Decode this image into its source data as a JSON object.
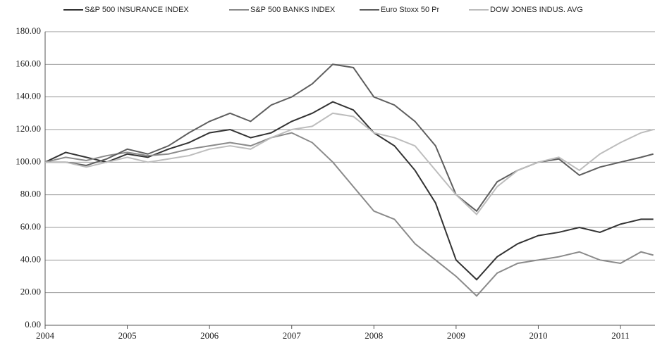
{
  "chart_data": {
    "type": "line",
    "x": [
      2004,
      2004.25,
      2004.5,
      2004.75,
      2005,
      2005.25,
      2005.5,
      2005.75,
      2006,
      2006.25,
      2006.5,
      2006.75,
      2007,
      2007.25,
      2007.5,
      2007.75,
      2008,
      2008.25,
      2008.5,
      2008.75,
      2009,
      2009.25,
      2009.5,
      2009.75,
      2010,
      2010.25,
      2010.5,
      2010.75,
      2011,
      2011.25,
      2011.4
    ],
    "series": [
      {
        "name": "S&P 500 INSURANCE INDEX",
        "color": "#333333",
        "values": [
          100,
          106,
          103,
          100,
          105,
          103,
          108,
          112,
          118,
          120,
          115,
          118,
          125,
          130,
          137,
          132,
          118,
          110,
          95,
          75,
          40,
          28,
          42,
          50,
          55,
          57,
          60,
          57,
          62,
          65,
          65
        ]
      },
      {
        "name": "S&P 500 BANKS INDEX",
        "color": "#8a8a8a",
        "values": [
          100,
          103,
          101,
          104,
          106,
          104,
          105,
          108,
          110,
          112,
          110,
          115,
          118,
          112,
          100,
          85,
          70,
          65,
          50,
          40,
          30,
          18,
          32,
          38,
          40,
          42,
          45,
          40,
          38,
          45,
          43
        ]
      },
      {
        "name": "Euro Stoxx 50 Pr",
        "color": "#5e5e5e",
        "values": [
          100,
          100,
          98,
          102,
          108,
          105,
          110,
          118,
          125,
          130,
          125,
          135,
          140,
          148,
          160,
          158,
          140,
          135,
          125,
          110,
          80,
          70,
          88,
          95,
          100,
          102,
          92,
          97,
          100,
          103,
          105
        ]
      },
      {
        "name": "DOW JONES INDUS. AVG",
        "color": "#bdbdbd",
        "values": [
          100,
          100,
          97,
          100,
          103,
          100,
          102,
          104,
          108,
          110,
          108,
          115,
          120,
          122,
          130,
          128,
          118,
          115,
          110,
          95,
          80,
          68,
          85,
          95,
          100,
          103,
          95,
          105,
          112,
          118,
          120
        ]
      }
    ],
    "xlim": [
      2004,
      2011.42
    ],
    "xticks": [
      2004,
      2005,
      2006,
      2007,
      2008,
      2009,
      2010,
      2011
    ],
    "ylim": [
      0,
      180
    ],
    "yticks": [
      {
        "value": 0,
        "label": "0.00"
      },
      {
        "value": 20,
        "label": "20.00"
      },
      {
        "value": 40,
        "label": "40.00"
      },
      {
        "value": 60,
        "label": "60.00"
      },
      {
        "value": 80,
        "label": "80.00"
      },
      {
        "value": 100,
        "label": "100.00"
      },
      {
        "value": 120,
        "label": "120.00"
      },
      {
        "value": 140,
        "label": "140.00"
      },
      {
        "value": 160,
        "label": "160.00"
      },
      {
        "value": 180,
        "label": "180.00"
      }
    ],
    "grid": true,
    "legend": "top"
  }
}
